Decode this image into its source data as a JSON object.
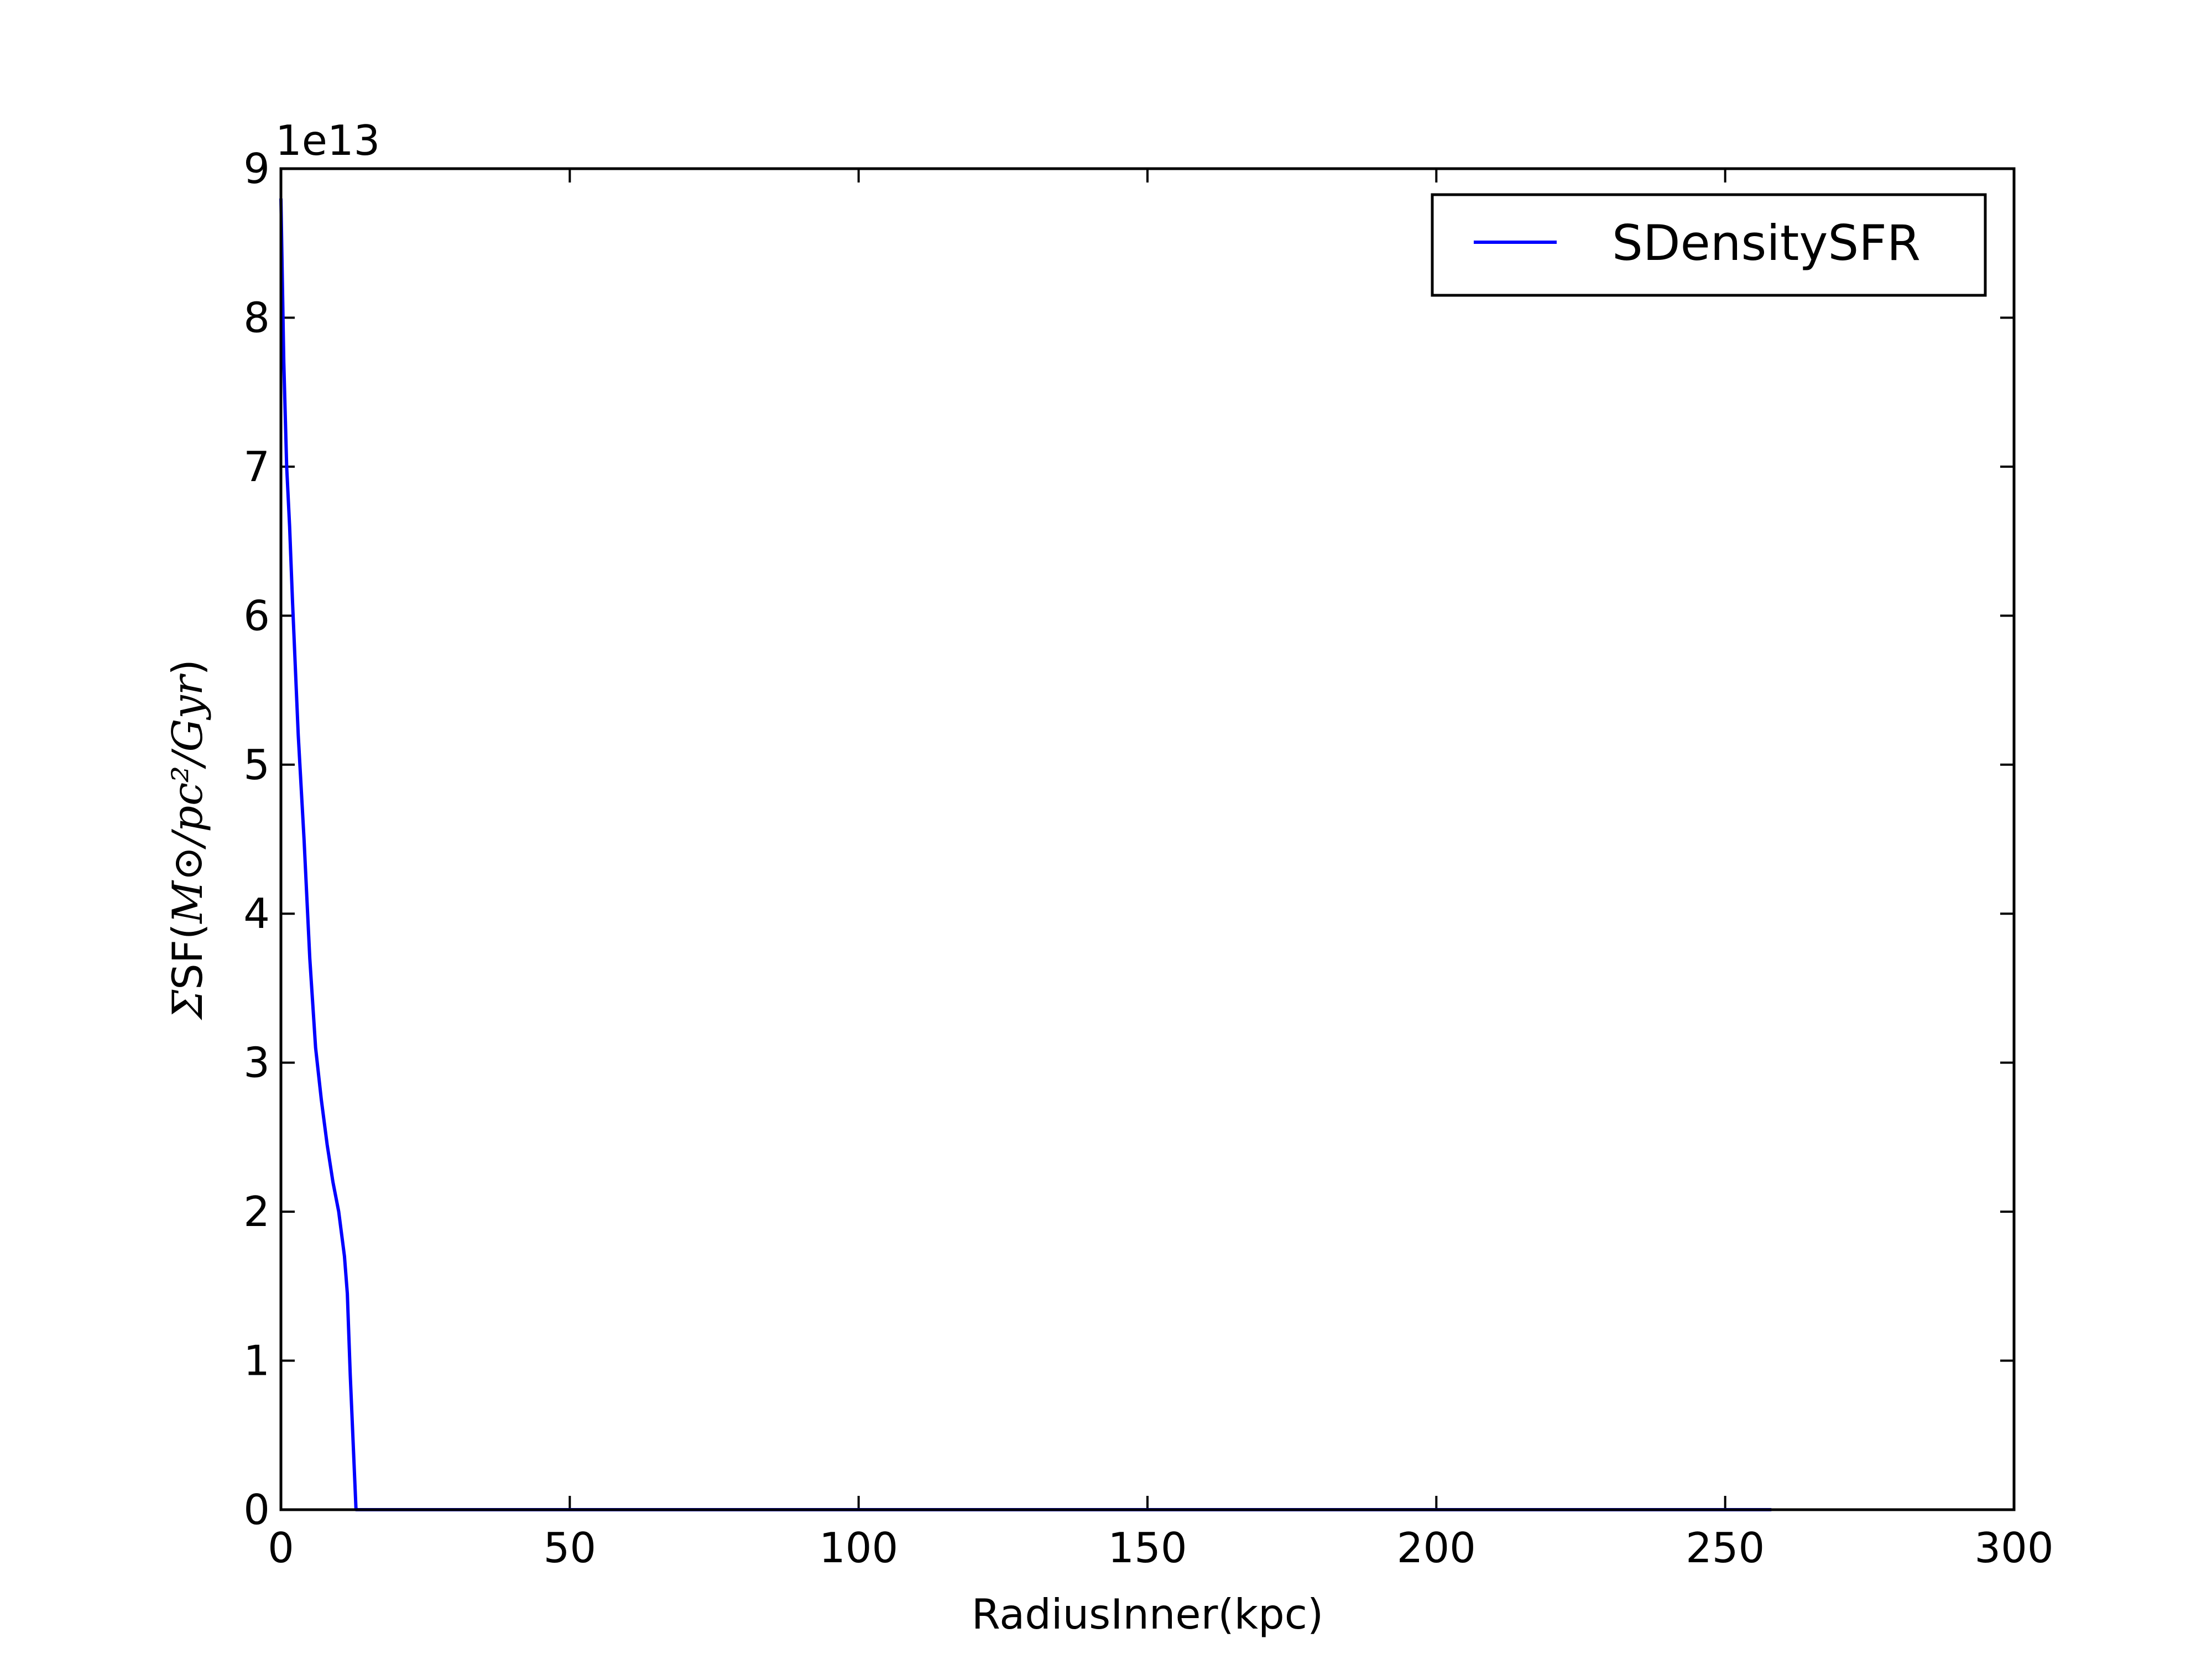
{
  "chart_data": {
    "type": "line",
    "xlabel": "RadiusInner(kpc)",
    "ylabel": {
      "prefix": "Σ",
      "text": "SF(",
      "math": "M⊙/pc²/Gyr",
      "suffix": ")"
    },
    "offset_text": "1e13",
    "xlim": [
      0,
      300
    ],
    "ylim": [
      0,
      9
    ],
    "y_scale_factor": 10000000000000.0,
    "xticks": [
      0,
      50,
      100,
      150,
      200,
      250,
      300
    ],
    "yticks": [
      0,
      1,
      2,
      3,
      4,
      5,
      6,
      7,
      8,
      9
    ],
    "grid": false,
    "legend_position": "upper-right",
    "series": [
      {
        "name": "SDensitySFR",
        "color": "#0000ff",
        "x": [
          0,
          0.5,
          1,
          1.5,
          2,
          3,
          4,
          5,
          6,
          7,
          8,
          9,
          10,
          11,
          11.5,
          12,
          13,
          15,
          20,
          50,
          100,
          150,
          200,
          258
        ],
        "y": [
          8.8,
          7.7,
          7.0,
          6.6,
          6.1,
          5.2,
          4.5,
          3.7,
          3.1,
          2.75,
          2.45,
          2.2,
          2.0,
          1.7,
          1.45,
          0.9,
          0,
          0,
          0,
          0,
          0,
          0,
          0,
          0
        ]
      }
    ]
  }
}
